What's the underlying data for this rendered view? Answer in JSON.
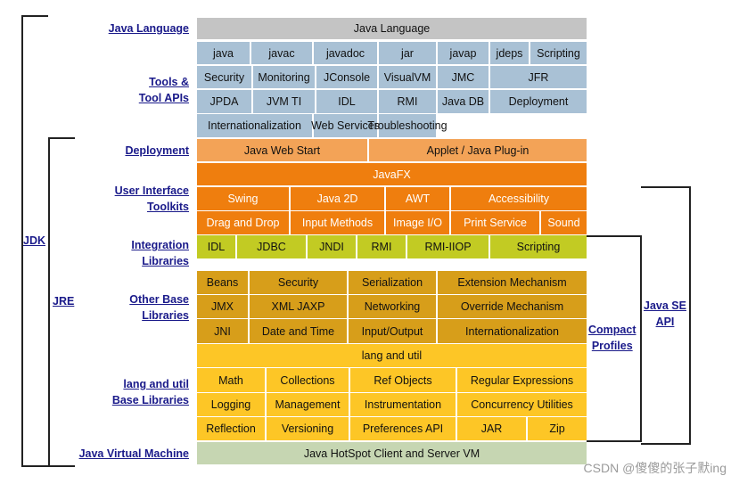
{
  "diagram": {
    "rows": [
      [
        "Java Language"
      ],
      [
        "java",
        "javac",
        "javadoc",
        "jar",
        "javap",
        "jdeps",
        "Scripting"
      ],
      [
        "Security",
        "Monitoring",
        "JConsole",
        "VisualVM",
        "JMC",
        "JFR"
      ],
      [
        "JPDA",
        "JVM TI",
        "IDL",
        "RMI",
        "Java DB",
        "Deployment"
      ],
      [
        "Internationalization",
        "Web Services",
        "Troubleshooting"
      ],
      [
        "Java Web Start",
        "Applet / Java Plug-in"
      ],
      [
        "JavaFX"
      ],
      [
        "Swing",
        "Java 2D",
        "AWT",
        "Accessibility"
      ],
      [
        "Drag and Drop",
        "Input Methods",
        "Image I/O",
        "Print Service",
        "Sound"
      ],
      [
        "IDL",
        "JDBC",
        "JNDI",
        "RMI",
        "RMI-IIOP",
        "Scripting"
      ],
      [
        "Beans",
        "Security",
        "Serialization",
        "Extension Mechanism"
      ],
      [
        "JMX",
        "XML JAXP",
        "Networking",
        "Override Mechanism"
      ],
      [
        "JNI",
        "Date and Time",
        "Input/Output",
        "Internationalization"
      ],
      [
        "lang and util"
      ],
      [
        "Math",
        "Collections",
        "Ref Objects",
        "Regular Expressions"
      ],
      [
        "Logging",
        "Management",
        "Instrumentation",
        "Concurrency Utilities"
      ],
      [
        "Reflection",
        "Versioning",
        "Preferences API",
        "JAR",
        "Zip"
      ],
      [
        "Java HotSpot Client and Server VM"
      ]
    ],
    "colors": {
      "gray_header": "#c4c4c4",
      "blue": "#a9c1d5",
      "orange_light": "#f3a357",
      "orange_dark": "#ef7e0e",
      "yellow_green": "#c2cb23",
      "gold": "#d79e1a",
      "yellow": "#fdc626",
      "green_pale": "#c6d6b2"
    },
    "left_labels": [
      "Java Language",
      "Tools &\nTool APIs",
      "Deployment",
      "User Interface\nToolkits",
      "Integration\nLibraries",
      "Other Base\nLibraries",
      "lang and util\nBase Libraries",
      "Java Virtual Machine"
    ],
    "brackets": {
      "jdk": "JDK",
      "jre": "JRE",
      "compact_profiles": "Compact\nProfiles",
      "java_se_api": "Java SE\nAPI"
    },
    "watermark": "CSDN @傻傻的张子默ing"
  }
}
